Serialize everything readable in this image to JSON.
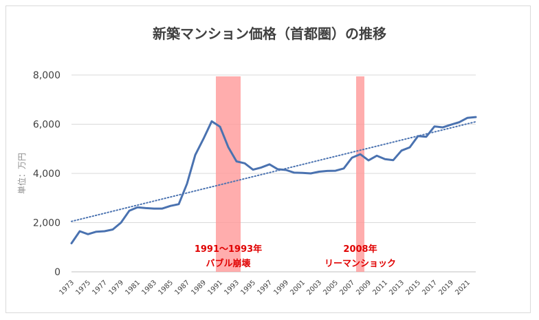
{
  "chart_data": {
    "type": "line",
    "title": "新築マンション価格（首都圏）の推移",
    "ylabel": "単位：万円",
    "xlabel": "",
    "ylim": [
      0,
      8000
    ],
    "yticks": [
      0,
      2000,
      4000,
      6000,
      8000
    ],
    "ytick_labels": [
      "0",
      "2,000",
      "4,000",
      "6,000",
      "8,000"
    ],
    "xlim": [
      1973,
      2022
    ],
    "xtick_labels": [
      "1973",
      "1975",
      "1977",
      "1979",
      "1981",
      "1983",
      "1985",
      "1987",
      "1989",
      "1991",
      "1993",
      "1995",
      "1997",
      "1999",
      "2001",
      "2003",
      "2005",
      "2007",
      "2009",
      "2011",
      "2013",
      "2015",
      "2017",
      "2019",
      "2021"
    ],
    "grid": "horizontal",
    "series": [
      {
        "values": [
          {
            "x": 1973,
            "y": 1160
          },
          {
            "x": 1974,
            "y": 1650
          },
          {
            "x": 1975,
            "y": 1530
          },
          {
            "x": 1976,
            "y": 1630
          },
          {
            "x": 1977,
            "y": 1650
          },
          {
            "x": 1978,
            "y": 1720
          },
          {
            "x": 1979,
            "y": 2000
          },
          {
            "x": 1980,
            "y": 2480
          },
          {
            "x": 1981,
            "y": 2620
          },
          {
            "x": 1982,
            "y": 2590
          },
          {
            "x": 1983,
            "y": 2570
          },
          {
            "x": 1984,
            "y": 2570
          },
          {
            "x": 1985,
            "y": 2680
          },
          {
            "x": 1986,
            "y": 2750
          },
          {
            "x": 1987,
            "y": 3580
          },
          {
            "x": 1988,
            "y": 4750
          },
          {
            "x": 1989,
            "y": 5410
          },
          {
            "x": 1990,
            "y": 6120
          },
          {
            "x": 1991,
            "y": 5900
          },
          {
            "x": 1992,
            "y": 5070
          },
          {
            "x": 1993,
            "y": 4490
          },
          {
            "x": 1994,
            "y": 4410
          },
          {
            "x": 1995,
            "y": 4150
          },
          {
            "x": 1996,
            "y": 4240
          },
          {
            "x": 1997,
            "y": 4370
          },
          {
            "x": 1998,
            "y": 4170
          },
          {
            "x": 1999,
            "y": 4140
          },
          {
            "x": 2000,
            "y": 4030
          },
          {
            "x": 2001,
            "y": 4020
          },
          {
            "x": 2002,
            "y": 4000
          },
          {
            "x": 2003,
            "y": 4070
          },
          {
            "x": 2004,
            "y": 4100
          },
          {
            "x": 2005,
            "y": 4110
          },
          {
            "x": 2006,
            "y": 4200
          },
          {
            "x": 2007,
            "y": 4640
          },
          {
            "x": 2008,
            "y": 4780
          },
          {
            "x": 2009,
            "y": 4530
          },
          {
            "x": 2010,
            "y": 4720
          },
          {
            "x": 2011,
            "y": 4580
          },
          {
            "x": 2012,
            "y": 4540
          },
          {
            "x": 2013,
            "y": 4930
          },
          {
            "x": 2014,
            "y": 5060
          },
          {
            "x": 2015,
            "y": 5520
          },
          {
            "x": 2016,
            "y": 5490
          },
          {
            "x": 2017,
            "y": 5910
          },
          {
            "x": 2018,
            "y": 5870
          },
          {
            "x": 2019,
            "y": 5980
          },
          {
            "x": 2020,
            "y": 6080
          },
          {
            "x": 2021,
            "y": 6260
          },
          {
            "x": 2022,
            "y": 6290
          }
        ],
        "color": "#4a72b0"
      }
    ],
    "trendline": {
      "style": "dotted",
      "color": "#4a72b0",
      "x": [
        1973,
        2022
      ],
      "y": [
        2050,
        6100
      ]
    },
    "highlight_bands": [
      {
        "x_from": 1991,
        "x_to": 1993,
        "color": "#ff9999",
        "label_line1": "1991～1993年",
        "label_line2": "バブル崩壊"
      },
      {
        "x_from": 2008,
        "x_to": 2008,
        "color": "#ff9999",
        "label_line1": "2008年",
        "label_line2": "リーマンショック"
      }
    ]
  }
}
